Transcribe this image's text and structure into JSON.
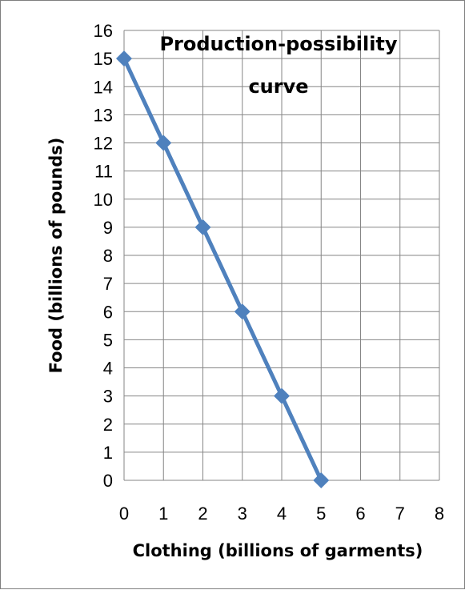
{
  "chart_data": {
    "type": "line",
    "title_lines": [
      "Production-possibility",
      "curve"
    ],
    "xlabel": "Clothing (billions of garments)",
    "ylabel": "Food (billions of pounds)",
    "xlim": [
      0,
      8
    ],
    "ylim": [
      0,
      16
    ],
    "x_ticks": [
      "0",
      "1",
      "2",
      "3",
      "4",
      "5",
      "6",
      "7",
      "8"
    ],
    "y_ticks": [
      "0",
      "1",
      "2",
      "3",
      "4",
      "5",
      "6",
      "7",
      "8",
      "9",
      "10",
      "11",
      "12",
      "13",
      "14",
      "15",
      "16"
    ],
    "grid": true,
    "series": [
      {
        "x": [
          0,
          1,
          2,
          3,
          4,
          5
        ],
        "y": [
          15,
          12,
          9,
          6,
          3,
          0
        ],
        "color": "#4f81bd",
        "marker": "diamond"
      }
    ]
  }
}
